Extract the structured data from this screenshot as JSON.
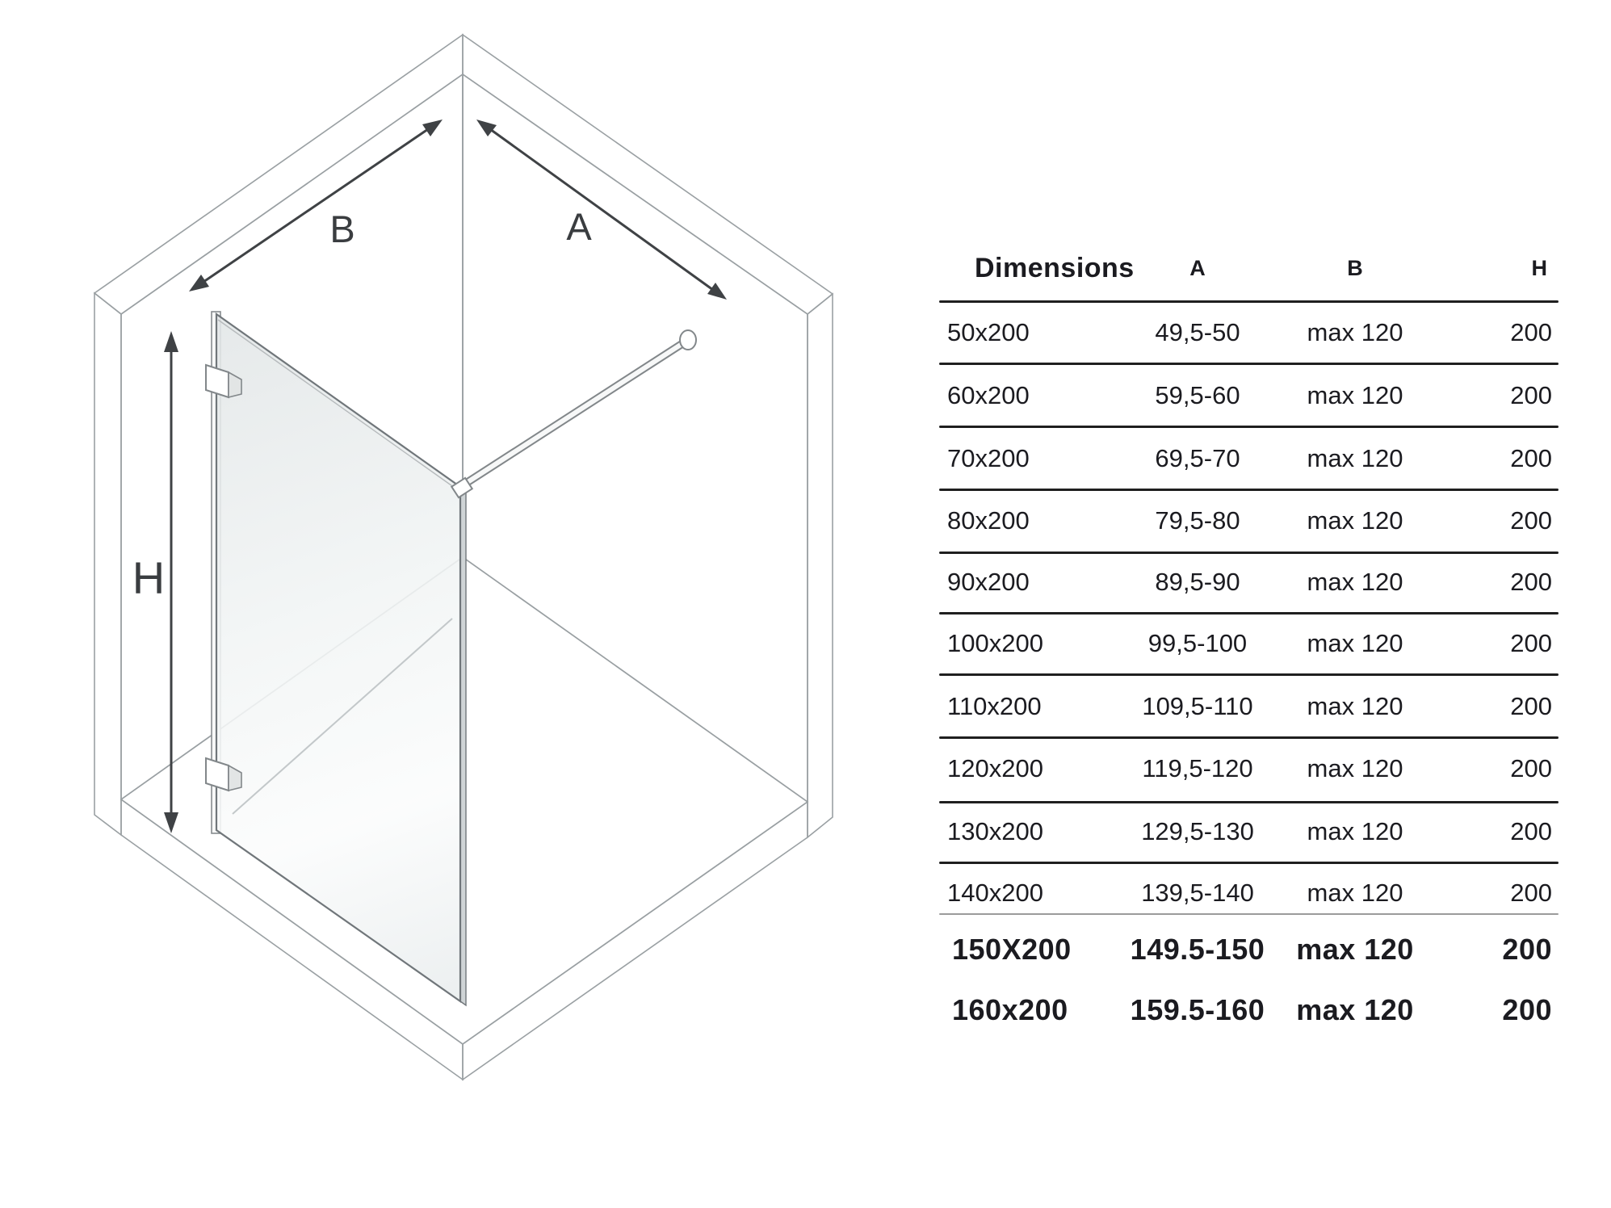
{
  "diagram": {
    "labels": {
      "a": "A",
      "b": "B",
      "h": "H"
    }
  },
  "table": {
    "title": "Dimensions",
    "columns": {
      "a": "A",
      "b": "B",
      "h": "H"
    },
    "rows": [
      [
        "50x200",
        "49,5-50",
        "max 120",
        "200"
      ],
      [
        "60x200",
        "59,5-60",
        "max 120",
        "200"
      ],
      [
        "70x200",
        "69,5-70",
        "max 120",
        "200"
      ],
      [
        "80x200",
        "79,5-80",
        "max 120",
        "200"
      ],
      [
        "90x200",
        "89,5-90",
        "max 120",
        "200"
      ],
      [
        "100x200",
        "99,5-100",
        "max 120",
        "200"
      ],
      [
        "110x200",
        "109,5-110",
        "max 120",
        "200"
      ],
      [
        "120x200",
        "119,5-120",
        "max 120",
        "200"
      ],
      [
        "130x200",
        "129,5-130",
        "max 120",
        "200"
      ],
      [
        "140x200",
        "139,5-140",
        "max 120",
        "200"
      ]
    ],
    "extra_rows": [
      [
        "150X200",
        "149.5-150",
        "max 120",
        "200"
      ],
      [
        "160x200",
        "159.5-160",
        "max 120",
        "200"
      ]
    ]
  },
  "colors": {
    "text": "#1b1b20",
    "separator": "#1f1f1f",
    "separator_light": "#9b9b9b",
    "arrow": "#3f4245",
    "wall_edge": "#9aa0a3"
  }
}
